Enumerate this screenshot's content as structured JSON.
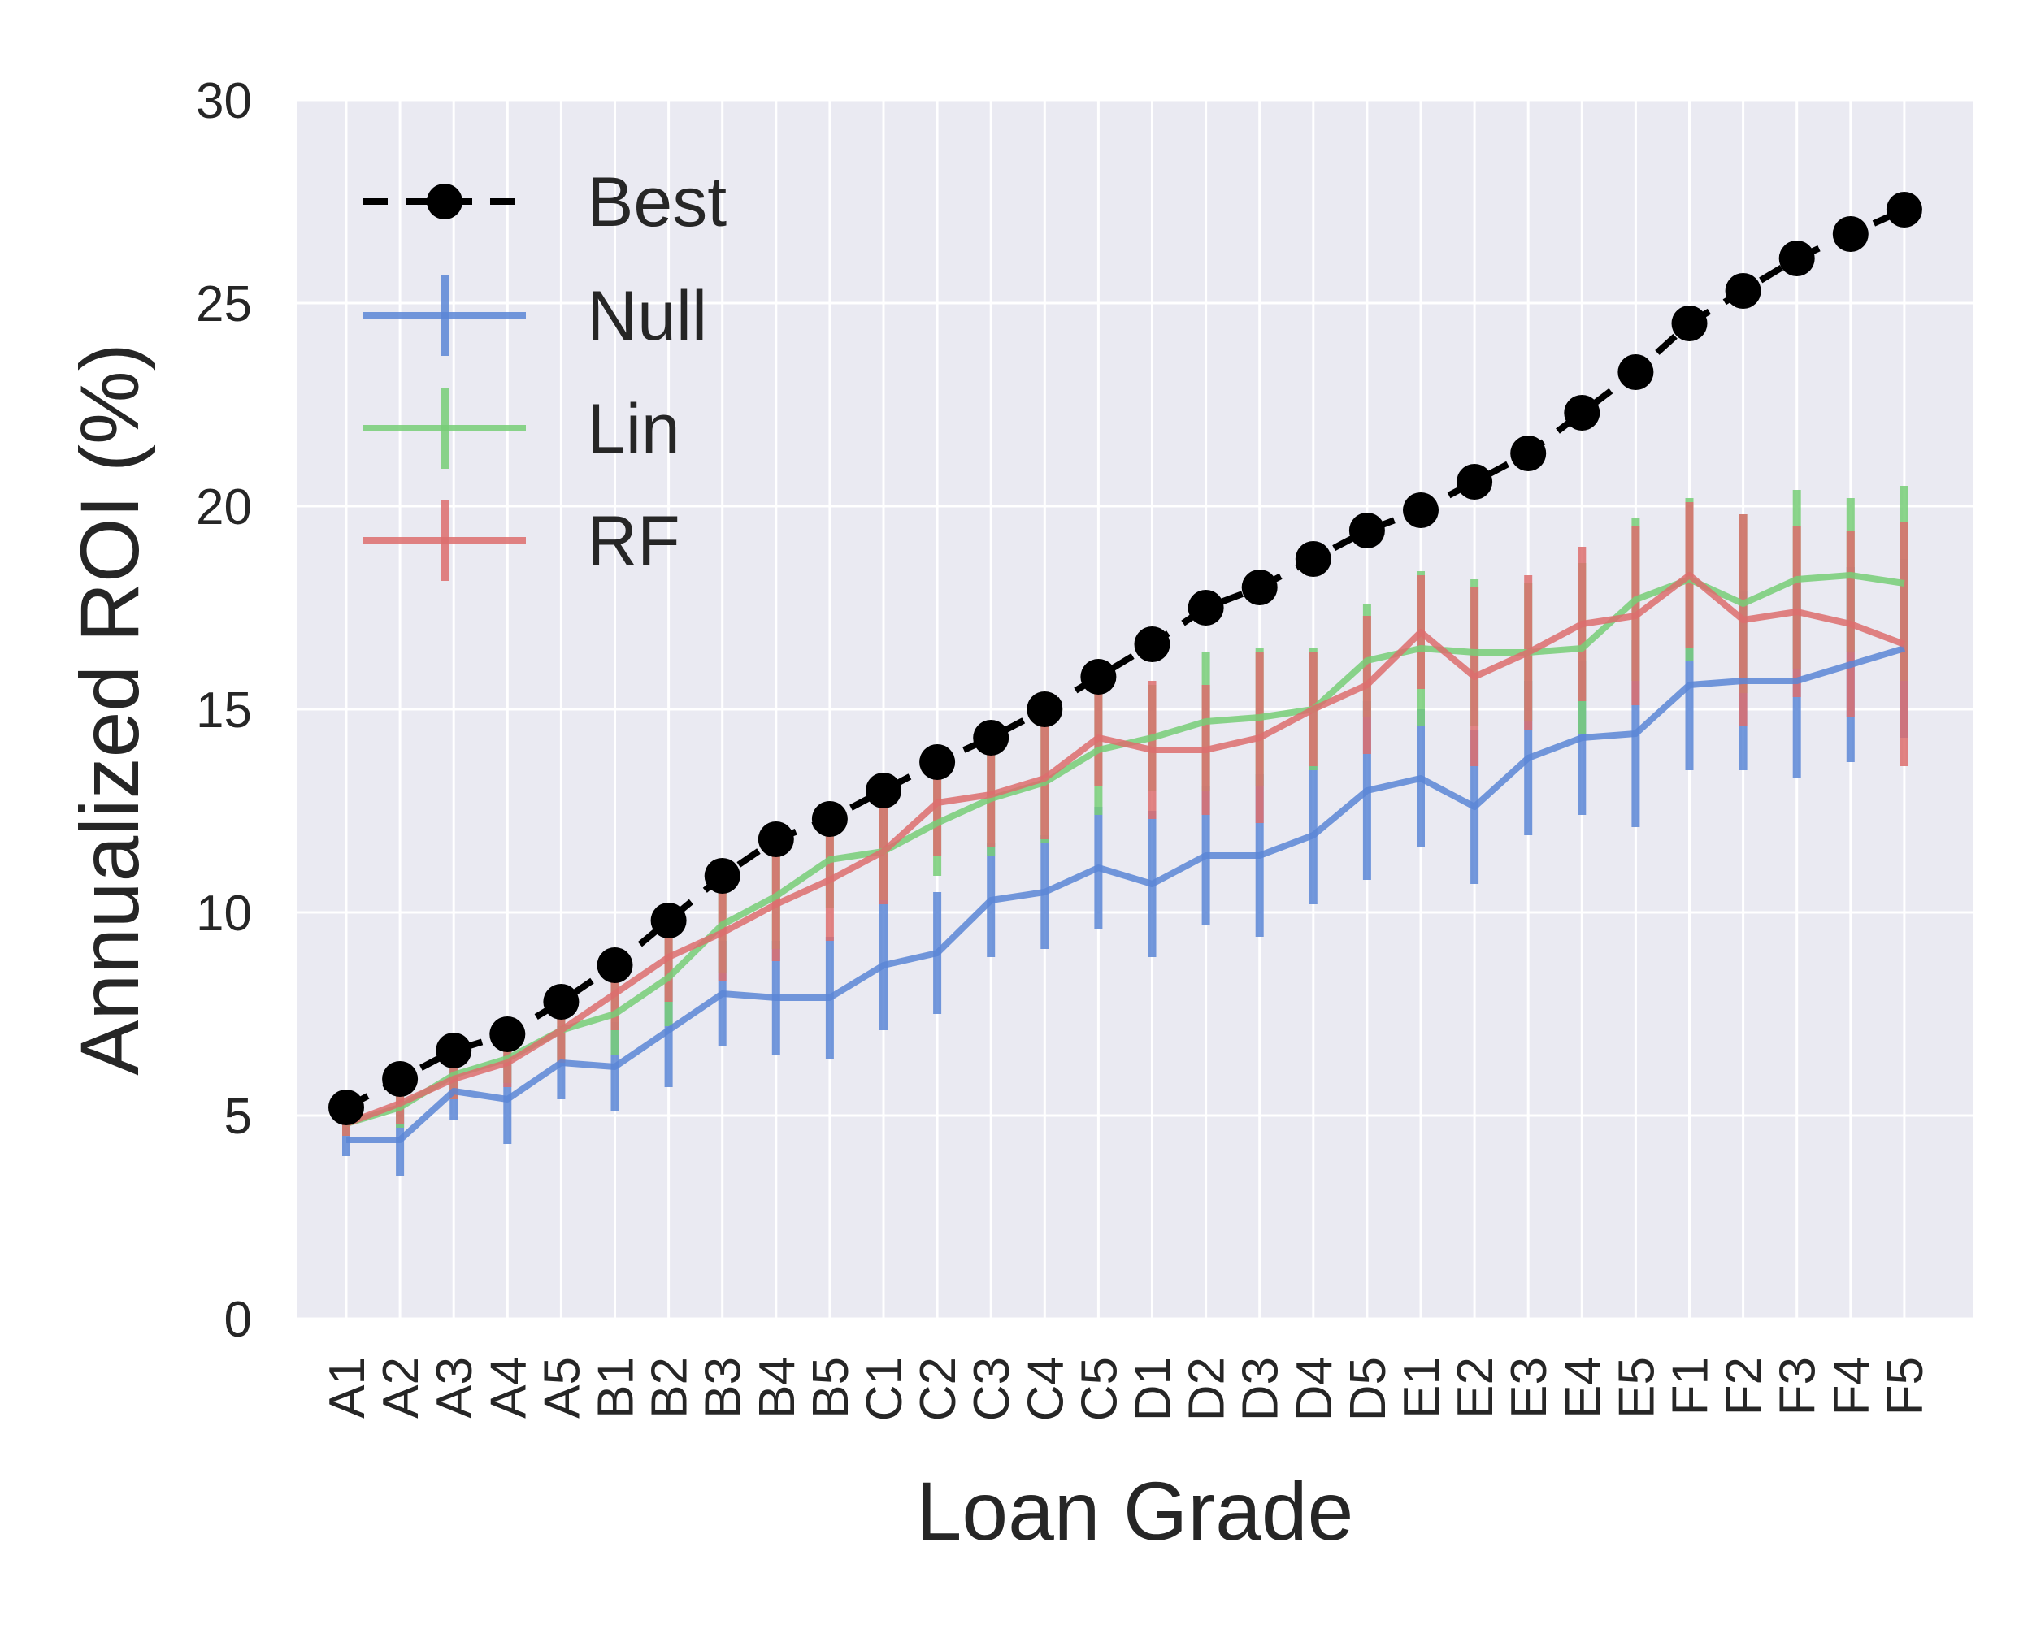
{
  "chart_data": {
    "type": "line",
    "xlabel": "Loan Grade",
    "ylabel": "Annualized ROI (%)",
    "ylim": [
      0,
      30
    ],
    "yticks": [
      "0",
      "5",
      "10",
      "15",
      "20",
      "25",
      "30"
    ],
    "categories": [
      "A1",
      "A2",
      "A3",
      "A4",
      "A5",
      "B1",
      "B2",
      "B3",
      "B4",
      "B5",
      "C1",
      "C2",
      "C3",
      "C4",
      "C5",
      "D1",
      "D2",
      "D3",
      "D4",
      "D5",
      "E1",
      "E2",
      "E3",
      "E4",
      "E5",
      "F1",
      "F2",
      "F3",
      "F4",
      "F5"
    ],
    "grid": true,
    "legend_position": "top-left",
    "series": [
      {
        "name": "Best",
        "style": "dashed-markers",
        "color": "#000000",
        "values": [
          5.2,
          5.9,
          6.6,
          7.0,
          7.8,
          8.7,
          9.8,
          10.9,
          11.8,
          12.3,
          13.0,
          13.7,
          14.3,
          15.0,
          15.8,
          16.6,
          17.5,
          18.0,
          18.7,
          19.4,
          19.9,
          20.6,
          21.3,
          22.3,
          23.3,
          24.5,
          25.3,
          26.1,
          26.7,
          27.3
        ]
      },
      {
        "name": "Null",
        "style": "errorbar",
        "color": "#5b86d6",
        "values": [
          4.4,
          4.4,
          5.6,
          5.4,
          6.3,
          6.2,
          7.1,
          8.0,
          7.9,
          7.9,
          8.7,
          9.0,
          10.3,
          10.5,
          11.1,
          10.7,
          11.4,
          11.4,
          11.9,
          13.0,
          13.3,
          12.6,
          13.8,
          14.3,
          14.4,
          15.6,
          15.7,
          15.7,
          16.1,
          16.5
        ],
        "errors": [
          0.4,
          0.9,
          0.7,
          1.1,
          0.9,
          1.1,
          1.4,
          1.3,
          1.4,
          1.5,
          1.6,
          1.5,
          1.4,
          1.4,
          1.5,
          1.8,
          1.7,
          2.0,
          1.7,
          2.2,
          1.7,
          1.9,
          1.9,
          1.9,
          2.3,
          2.1,
          2.2,
          2.4,
          2.4,
          2.2
        ]
      },
      {
        "name": "Lin",
        "style": "errorbar",
        "color": "#77ce77",
        "values": [
          4.8,
          5.2,
          6.0,
          6.4,
          7.1,
          7.5,
          8.4,
          9.7,
          10.4,
          11.3,
          11.5,
          12.2,
          12.8,
          13.2,
          14.0,
          14.3,
          14.7,
          14.8,
          15.0,
          16.2,
          16.5,
          16.4,
          16.4,
          16.5,
          17.7,
          18.2,
          17.6,
          18.2,
          18.3,
          18.1
        ],
        "errors": [
          0.3,
          0.5,
          0.6,
          0.6,
          0.8,
          1.0,
          1.2,
          1.2,
          1.3,
          1.2,
          1.2,
          1.3,
          1.4,
          1.5,
          1.6,
          1.3,
          1.7,
          1.7,
          1.5,
          1.4,
          1.9,
          1.8,
          1.7,
          2.1,
          2.0,
          2.0,
          2.2,
          2.2,
          1.9,
          2.4
        ]
      },
      {
        "name": "RF",
        "style": "errorbar",
        "color": "#dd6d6d",
        "values": [
          4.8,
          5.3,
          5.9,
          6.3,
          7.1,
          8.0,
          8.9,
          9.5,
          10.2,
          10.8,
          11.5,
          12.7,
          12.9,
          13.3,
          14.3,
          14.0,
          14.0,
          14.3,
          15.0,
          15.6,
          16.9,
          15.8,
          16.4,
          17.1,
          17.3,
          18.3,
          17.2,
          17.4,
          17.1,
          16.6
        ],
        "errors": [
          0.3,
          0.5,
          0.5,
          0.6,
          0.8,
          0.9,
          1.1,
          1.2,
          1.4,
          1.5,
          1.3,
          1.3,
          1.3,
          1.5,
          1.2,
          1.7,
          1.6,
          2.1,
          1.4,
          1.7,
          1.4,
          2.2,
          1.9,
          1.9,
          2.2,
          1.8,
          2.6,
          2.1,
          2.3,
          3.0
        ]
      }
    ]
  }
}
